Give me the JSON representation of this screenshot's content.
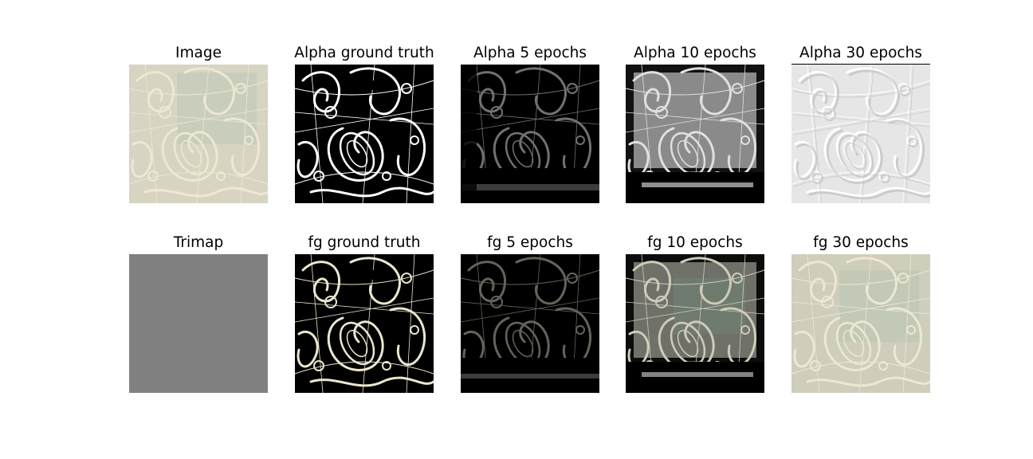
{
  "panels": {
    "row1": [
      {
        "title": "Image",
        "kind": "rgb-lace"
      },
      {
        "title": "Alpha ground truth",
        "kind": "alpha-gt"
      },
      {
        "title": "Alpha 5 epochs",
        "kind": "alpha-5"
      },
      {
        "title": "Alpha 10 epochs",
        "kind": "alpha-10"
      },
      {
        "title": "Alpha 30 epochs",
        "kind": "alpha-30"
      }
    ],
    "row2": [
      {
        "title": "Trimap",
        "kind": "trimap"
      },
      {
        "title": "fg ground truth",
        "kind": "fg-gt"
      },
      {
        "title": "fg 5 epochs",
        "kind": "fg-5"
      },
      {
        "title": "fg 10 epochs",
        "kind": "fg-10"
      },
      {
        "title": "fg 30 epochs",
        "kind": "fg-30"
      }
    ]
  },
  "colors": {
    "trimap_gray": "#808080",
    "lace_cream": "#ede8d6",
    "background": "#ffffff"
  }
}
